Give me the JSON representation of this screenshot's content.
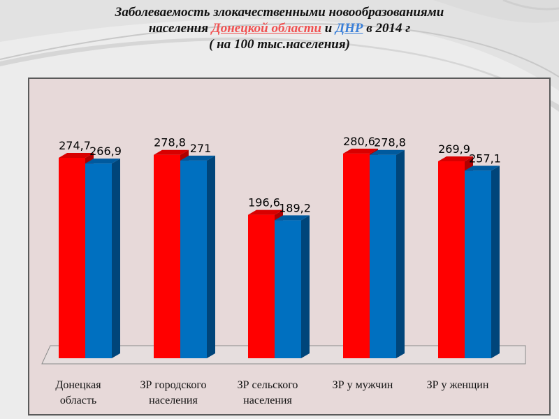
{
  "title": {
    "line1": "Заболеваемость  злокачественными  новообразованиями",
    "line2_prefix": "населения",
    "line2_region1": "Донецкой области",
    "line2_and": "и",
    "line2_region2": "ДНР",
    "line2_suffix": "в 2014 г",
    "line3": "( на 100 тыс.населения)"
  },
  "colors": {
    "series1": "#ff0000",
    "series1_dark": "#b00000",
    "series1_top": "#d80000",
    "series2": "#0070c0",
    "series2_dark": "#00457a",
    "series2_top": "#005a9e",
    "floor": "#e6dede",
    "title_red": "#f05050",
    "title_blue": "#3a7fd8"
  },
  "chart_data": {
    "type": "bar",
    "categories": [
      [
        "Донецкая",
        "область"
      ],
      [
        "ЗР городского",
        "населения"
      ],
      [
        "ЗР сельского",
        "населения"
      ],
      [
        "ЗР у мужчин"
      ],
      [
        "ЗР у женщин"
      ]
    ],
    "series": [
      {
        "values": [
          274.7,
          278.8,
          196.6,
          280.6,
          269.9
        ],
        "labels": [
          "274,7",
          "278,8",
          "196,6",
          "280,6",
          "269,9"
        ]
      },
      {
        "values": [
          266.9,
          271,
          189.2,
          278.8,
          257.1
        ],
        "labels": [
          "266,9",
          "271",
          "189,2",
          "278,8",
          "257,1"
        ]
      }
    ],
    "ylim": [
      0,
      330
    ],
    "grid": false,
    "legend": "none"
  }
}
